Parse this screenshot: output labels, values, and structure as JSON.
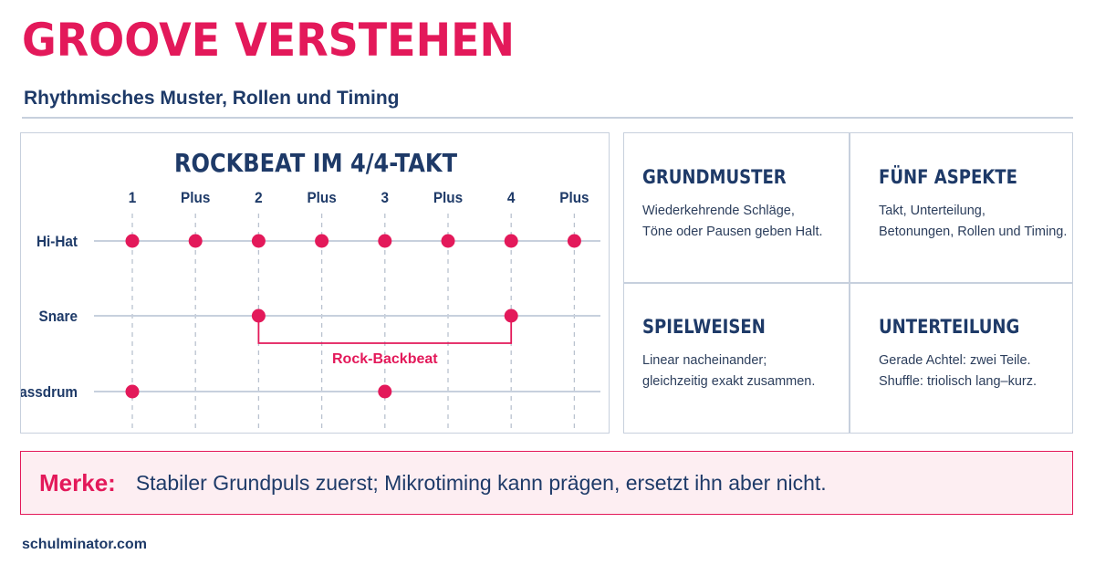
{
  "header": {
    "title": "GROOVE VERSTEHEN",
    "subtitle": "Rhythmisches Muster, Rollen und Timing"
  },
  "colors": {
    "accent": "#e3195a",
    "navy": "#1e3a68",
    "line": "#c7d0dd",
    "note_bg": "#fdeef2"
  },
  "diagram": {
    "title": "ROCKBEAT IM 4/4-TAKT",
    "counts": [
      "1",
      "Plus",
      "2",
      "Plus",
      "3",
      "Plus",
      "4",
      "Plus"
    ],
    "tracks": [
      {
        "label": "Hi-Hat",
        "hits": [
          0,
          1,
          2,
          3,
          4,
          5,
          6,
          7
        ]
      },
      {
        "label": "Snare",
        "hits": [
          2,
          6
        ]
      },
      {
        "label": "Bassdrum",
        "hits": [
          0,
          4
        ]
      }
    ],
    "bracket": {
      "label": "Rock-Backbeat",
      "from": 2,
      "to": 6
    }
  },
  "aspects": [
    {
      "title": "GRUNDMUSTER",
      "lines": [
        "Wiederkehrende Schläge,",
        "Töne oder Pausen geben Halt."
      ]
    },
    {
      "title": "FÜNF ASPEKTE",
      "lines": [
        "Takt, Unterteilung,",
        "Betonungen, Rollen und Timing."
      ]
    },
    {
      "title": "SPIELWEISEN",
      "lines": [
        "Linear nacheinander;",
        "gleichzeitig exakt zusammen."
      ]
    },
    {
      "title": "UNTERTEILUNG",
      "lines": [
        "Gerade Achtel: zwei Teile.",
        "Shuffle: triolisch lang–kurz."
      ]
    }
  ],
  "note": {
    "label": "Merke:",
    "text": "Stabiler Grundpuls zuerst; Mikrotiming kann prägen, ersetzt ihn aber nicht."
  },
  "footer": {
    "site": "schulminator.com"
  }
}
